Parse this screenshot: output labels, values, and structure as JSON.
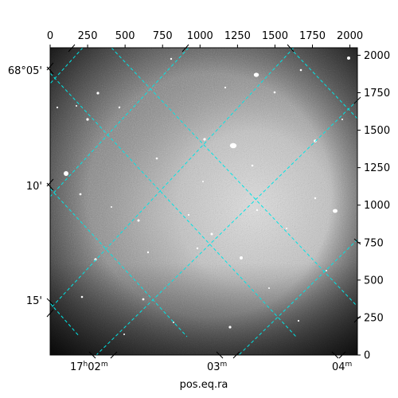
{
  "chart_data": {
    "type": "image",
    "image_description_visible": false,
    "xlabel": "pos.eq.ra",
    "pixel_axes": {
      "x_top": {
        "range": [
          0,
          2050
        ],
        "ticks": [
          0,
          250,
          500,
          750,
          1000,
          1250,
          1500,
          1750,
          2000
        ]
      },
      "y_right": {
        "range": [
          0,
          2050
        ],
        "ticks": [
          0,
          250,
          500,
          750,
          1000,
          1250,
          1500,
          1750,
          2000
        ]
      }
    },
    "world_axes": {
      "ra_bottom": {
        "ticks": [
          {
            "hours": "17",
            "minutes": "02",
            "label": "17h02m"
          },
          {
            "hours": "",
            "minutes": "03",
            "label": "03m"
          },
          {
            "hours": "",
            "minutes": "04",
            "label": "04m"
          }
        ]
      },
      "dec_left": {
        "ticks": [
          {
            "label": "68°05'"
          },
          {
            "label": "10'"
          },
          {
            "label": "15'"
          }
        ]
      }
    },
    "grid": true,
    "grid_color": "#00e5e5",
    "colormap": "gray"
  }
}
